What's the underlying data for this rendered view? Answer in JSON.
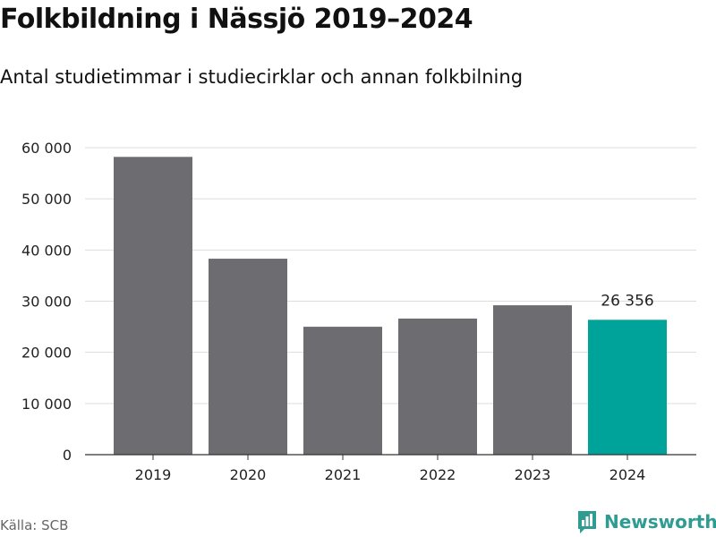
{
  "title": "Folkbildning i Nässjö 2019–2024",
  "subtitle": "Antal studietimmar i studiecirklar och annan folkbilning",
  "source": "Källa: SCB",
  "brand": "Newsworthy",
  "colors": {
    "bar": "#6d6c71",
    "highlight": "#00a39a",
    "grid": "#dddddd",
    "axis": "#333333",
    "brand": "#2f9c93"
  },
  "chart_data": {
    "type": "bar",
    "categories": [
      "2019",
      "2020",
      "2021",
      "2022",
      "2023",
      "2024"
    ],
    "values": [
      58200,
      38300,
      25000,
      26600,
      29200,
      26356
    ],
    "ylim": [
      0,
      60000
    ],
    "yticks": [
      0,
      10000,
      20000,
      30000,
      40000,
      50000,
      60000
    ],
    "ytick_labels": [
      "0",
      "10 000",
      "20 000",
      "30 000",
      "40 000",
      "50 000",
      "60 000"
    ],
    "highlight_index": 5,
    "data_labels": [
      {
        "index": 5,
        "text": "26 356"
      }
    ],
    "grid": true,
    "xlabel": "",
    "ylabel": ""
  }
}
